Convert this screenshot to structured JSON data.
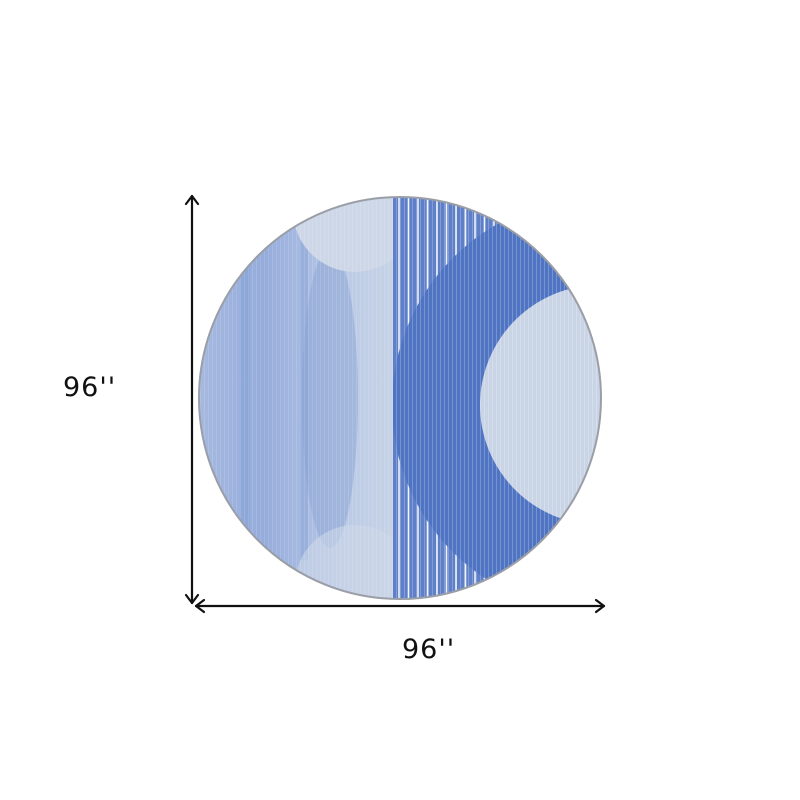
{
  "product": {
    "height_label": "96''",
    "width_label": "96''",
    "shape": "round",
    "colors": {
      "light": "#c9d4e6",
      "mid": "#8ea6d6",
      "dark": "#4f74c4",
      "border": "#9a9ea6",
      "arrow": "#111111"
    }
  }
}
